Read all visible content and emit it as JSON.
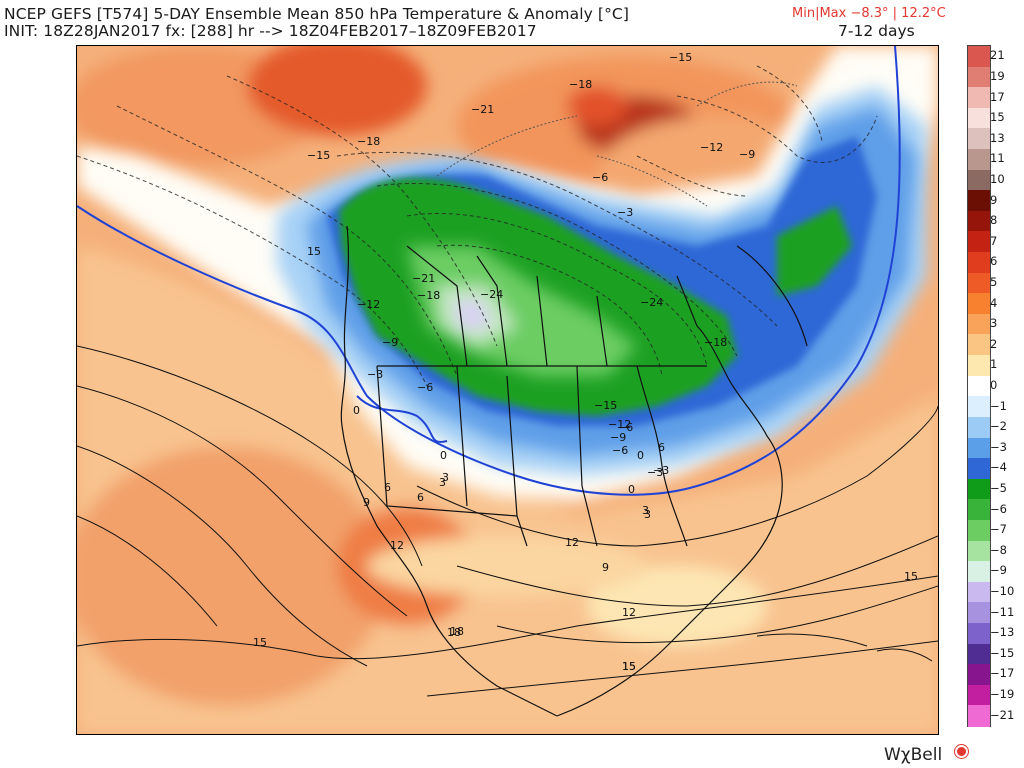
{
  "header": {
    "title": "NCEP GEFS [T574] 5-DAY Ensemble Mean 850 hPa Temperature & Anomaly [°C]",
    "init": "INIT: 18Z28JAN2017  fx: [288] hr --> 18Z04FEB2017–18Z09FEB2017",
    "minmax": "Min|Max  −8.3° | 12.2°C",
    "range": "7-12 days"
  },
  "colorbar": {
    "labels": [
      "21",
      "19",
      "17",
      "15",
      "13",
      "11",
      "10",
      "9",
      "8",
      "7",
      "6",
      "5",
      "4",
      "3",
      "2",
      "1",
      "0",
      "−1",
      "−2",
      "−3",
      "−4",
      "−5",
      "−6",
      "−7",
      "−8",
      "−9",
      "−10",
      "−11",
      "−13",
      "−15",
      "−17",
      "−19",
      "−21"
    ],
    "colors": [
      "#d9574e",
      "#e07e73",
      "#f0b9b1",
      "#f8e0dc",
      "#dcc1bc",
      "#b9978f",
      "#8a6a62",
      "#6b0f05",
      "#96150a",
      "#c42314",
      "#e03d1e",
      "#ef5b27",
      "#f7812e",
      "#f8a25a",
      "#fac583",
      "#fde8b0",
      "#ffffff",
      "#dcefff",
      "#9cccf5",
      "#5b9fe8",
      "#2f68d6",
      "#0f9d19",
      "#39b33a",
      "#6ccd63",
      "#a6e3a0",
      "#d9f0e4",
      "#c9b9ee",
      "#a792e0",
      "#7e62cc",
      "#4f2d92",
      "#86158e",
      "#c21fa0",
      "#f06ad4"
    ]
  },
  "map": {
    "labels": [
      "15",
      "−12",
      "−9",
      "−6",
      "−3",
      "0",
      "3",
      "6",
      "9",
      "12",
      "15",
      "18",
      "−15",
      "−21",
      "−18",
      "−24",
      "−18",
      "−15",
      "−12",
      "−9",
      "−6",
      "−3",
      "0",
      "3",
      "6",
      "−6",
      "−3",
      "0",
      "3",
      "−21",
      "−18",
      "−24",
      "−18",
      "−15",
      "−12",
      "−9",
      "−6",
      "−3",
      "0",
      "3",
      "6",
      "9",
      "12",
      "15",
      "18",
      "15",
      "12",
      "15"
    ]
  },
  "brand": "WχBell"
}
